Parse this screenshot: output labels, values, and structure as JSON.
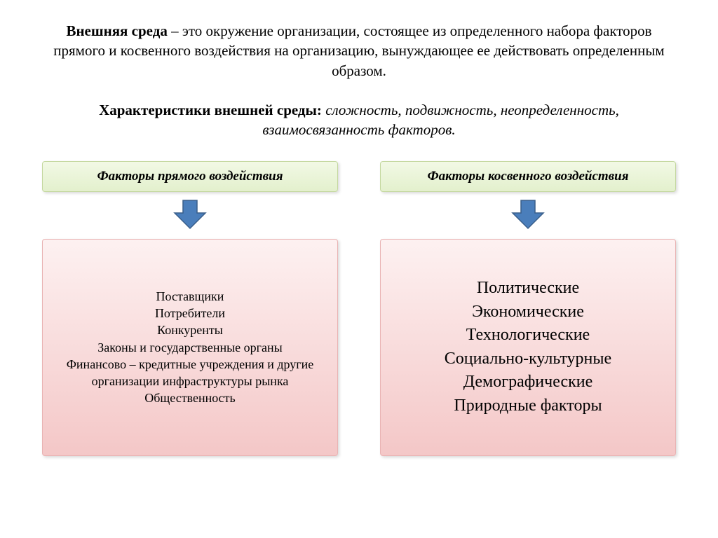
{
  "definition": {
    "term": "Внешняя среда",
    "rest": " – это окружение организации, состоящее из определенного набора факторов прямого и косвенного воздействия на организацию, вынуждающее ее действовать определенным образом."
  },
  "characteristics": {
    "label": "Характеристики внешней среды: ",
    "values": "сложность, подвижность, неопределенность, взаимосвязанность факторов."
  },
  "columns": {
    "left": {
      "header": "Факторы прямого воздействия",
      "items": [
        "Поставщики",
        "Потребители",
        "Конкуренты",
        "Законы и государственные органы",
        "Финансово – кредитные учреждения и другие организации инфраструктуры рынка",
        "Общественность"
      ]
    },
    "right": {
      "header": "Факторы косвенного воздействия",
      "items": [
        "Политические",
        "Экономические",
        "Технологические",
        "Социально-культурные",
        "Демографические",
        "Природные факторы"
      ]
    }
  },
  "styles": {
    "header_box": {
      "bg_top": "#f2f9e5",
      "bg_bottom": "#e3f0cd",
      "border": "#c4d89f"
    },
    "content_box": {
      "bg_top": "#fdf1f1",
      "bg_bottom": "#f4c7c7",
      "border": "#e9b3b3"
    },
    "arrow": {
      "fill": "#4a7ebb",
      "stroke": "#3a5f8a",
      "width": 48,
      "height": 44
    }
  }
}
